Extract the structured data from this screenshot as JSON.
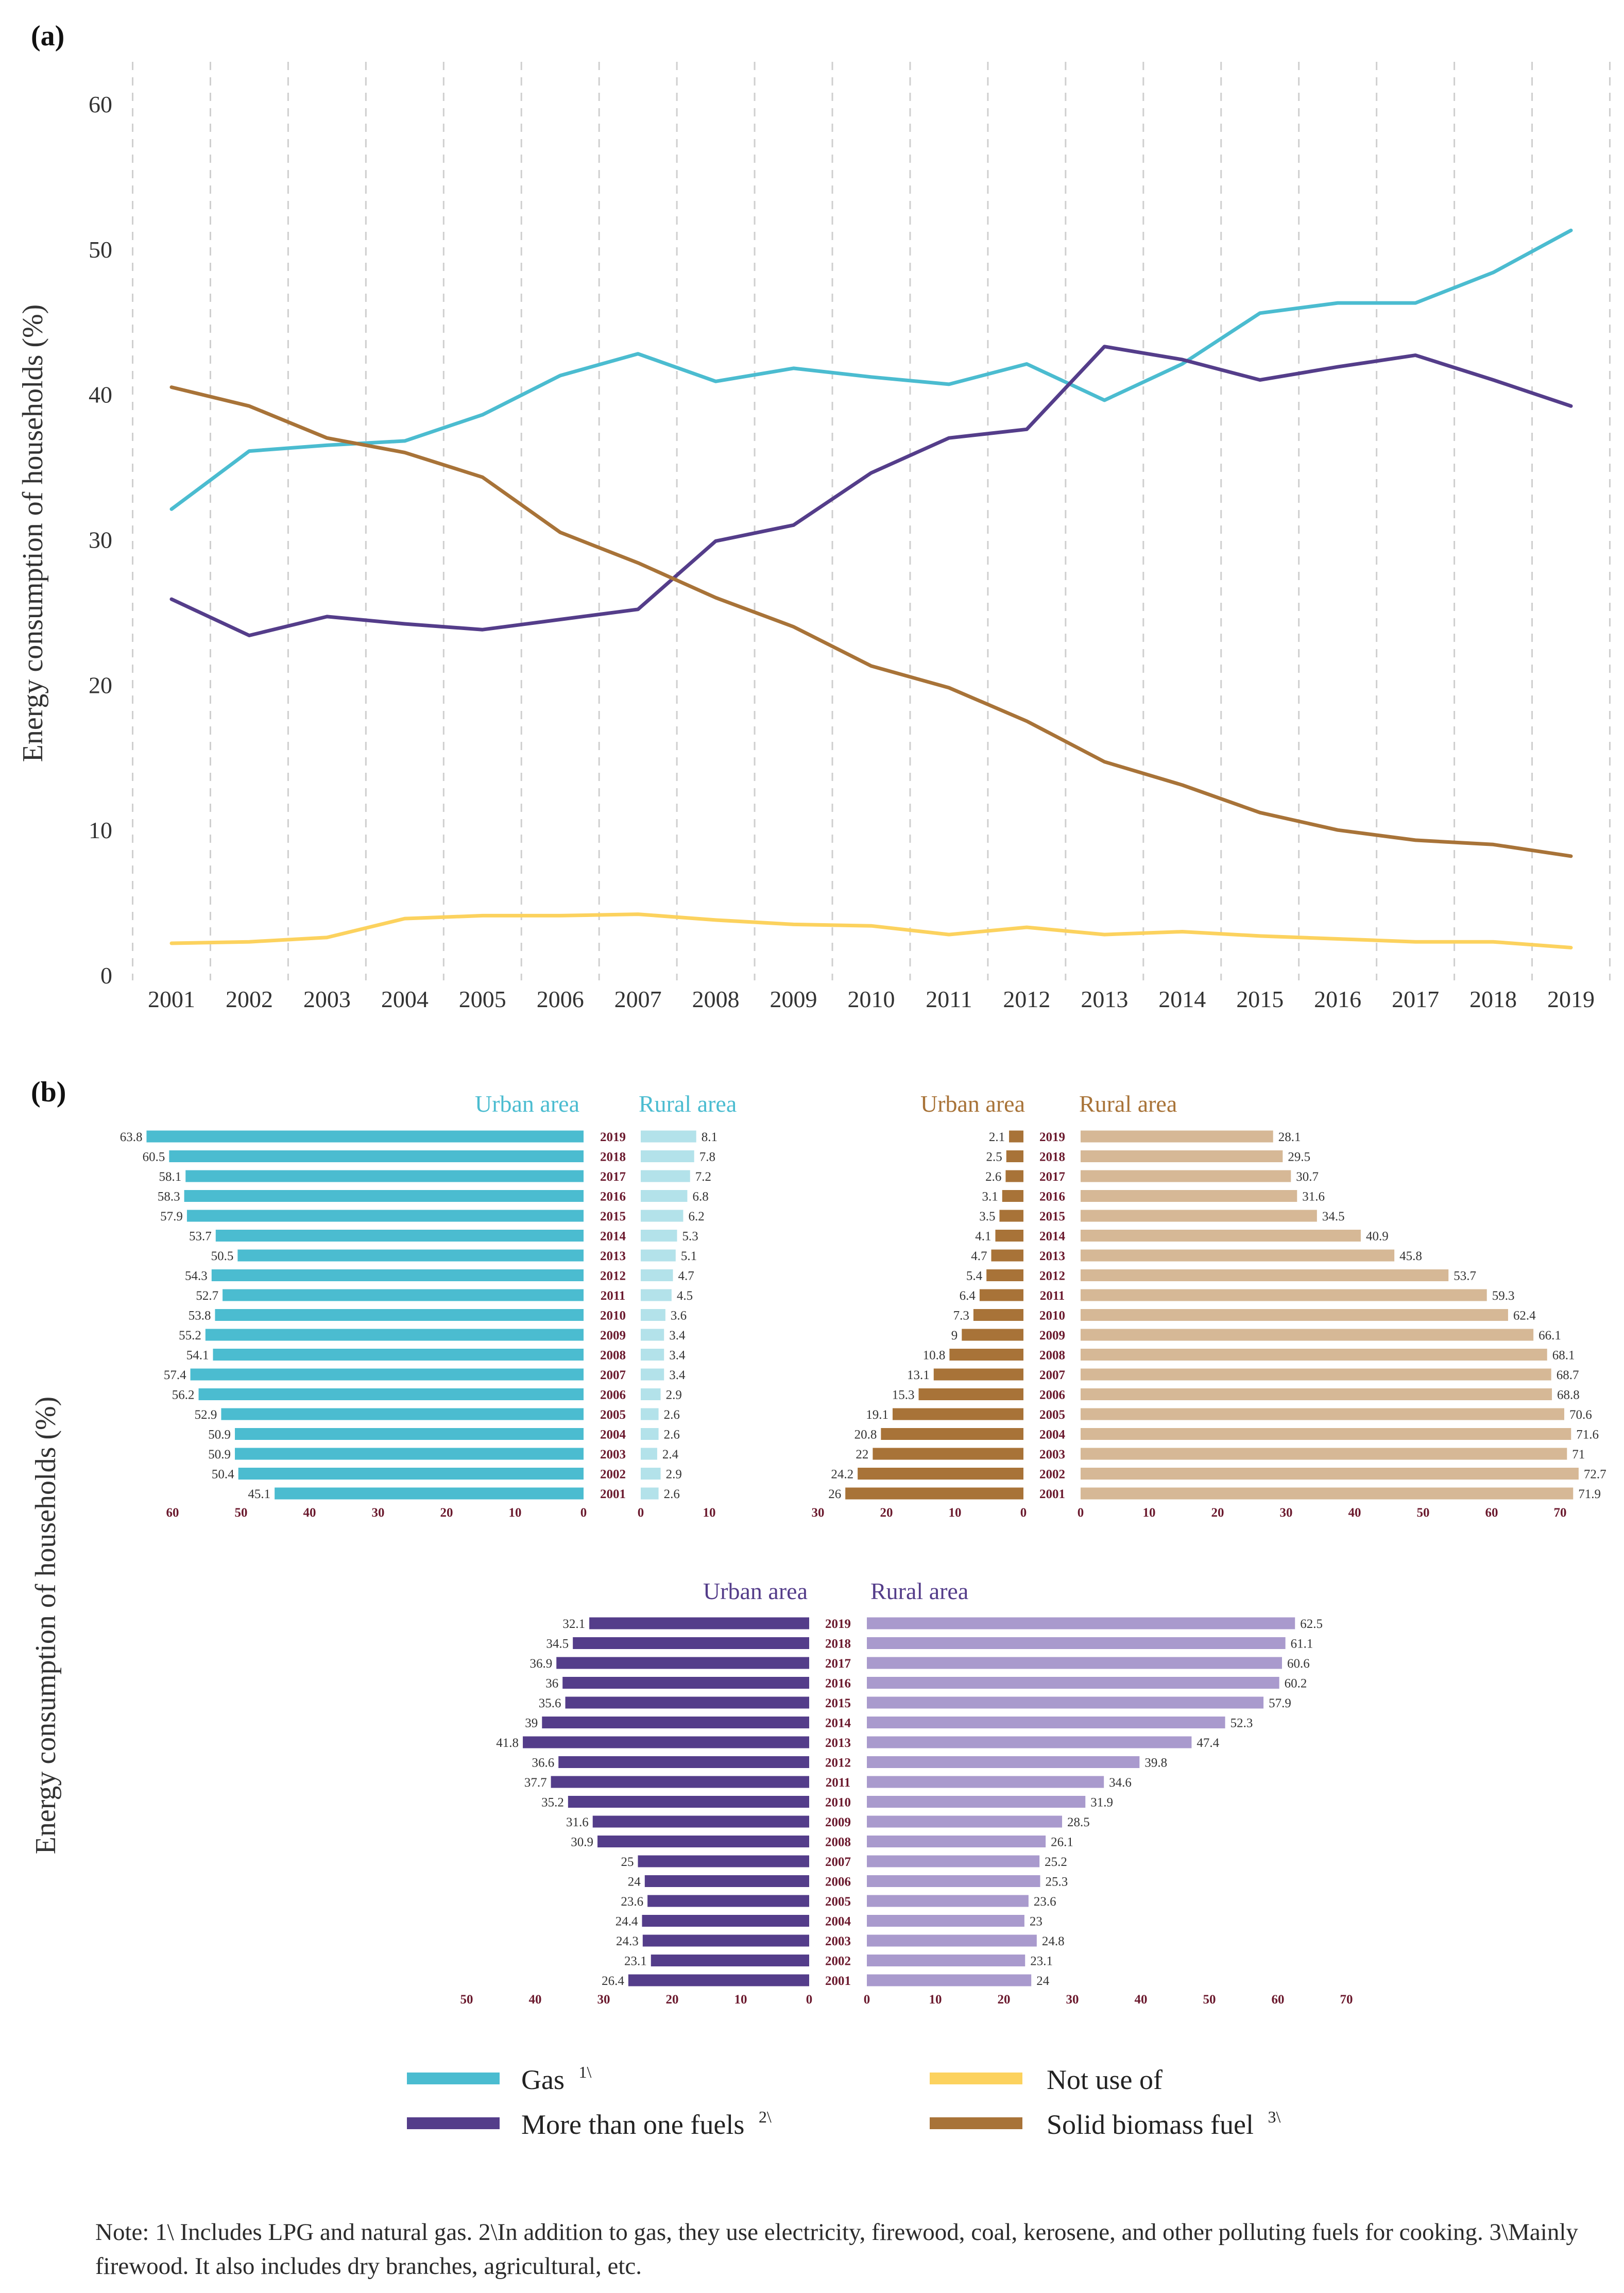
{
  "colors": {
    "gas": "#4bbcd0",
    "gas_light": "#b3e2ea",
    "more_than_one": "#543d8a",
    "more_than_one_light": "#a99acd",
    "not_use": "#fcd25e",
    "biomass": "#a87338",
    "biomass_light": "#d6b896",
    "year_label": "#6b1a2e",
    "grid": "#cfcfcf",
    "axis_text": "#333333"
  },
  "panel_a": {
    "tag": "(a)"
  },
  "panel_b": {
    "tag": "(b)"
  },
  "legend": {
    "gas": {
      "label": "Gas",
      "sup": "1\\"
    },
    "more_than_one": {
      "label": "More than one fuels",
      "sup": "2\\"
    },
    "not_use": {
      "label": "Not use of",
      "sup": ""
    },
    "biomass": {
      "label": "Solid biomass fuel",
      "sup": "3\\"
    }
  },
  "note": "Note: 1\\ Includes LPG and natural gas. 2\\In addition to gas, they use electricity, firewood, coal, kerosene, and other polluting fuels for cooking. 3\\Mainly firewood. It also includes dry branches, agricultural, etc.",
  "chart_data": [
    {
      "id": "line",
      "type": "line",
      "ylabel": "Energy consumption of households (%)",
      "xlabel": "",
      "ylim": [
        0,
        60
      ],
      "yticks": [
        0,
        10,
        20,
        30,
        40,
        50,
        60
      ],
      "x": [
        "2001",
        "2002",
        "2003",
        "2004",
        "2005",
        "2006",
        "2007",
        "2008",
        "2009",
        "2010",
        "2011",
        "2012",
        "2013",
        "2014",
        "2015",
        "2016",
        "2017",
        "2018",
        "2019"
      ],
      "series": [
        {
          "key": "gas",
          "name": "Gas",
          "values": [
            32.1,
            36.1,
            36.5,
            36.8,
            38.6,
            41.3,
            42.8,
            40.9,
            41.8,
            41.2,
            40.7,
            42.1,
            39.6,
            42.1,
            45.6,
            46.3,
            46.3,
            48.4,
            51.3
          ]
        },
        {
          "key": "more_than_one",
          "name": "More than one fuels",
          "values": [
            25.9,
            23.4,
            24.7,
            24.2,
            23.8,
            24.5,
            25.2,
            29.9,
            31.0,
            34.6,
            37.0,
            37.6,
            43.3,
            42.4,
            41.0,
            41.9,
            42.7,
            41.0,
            39.2
          ]
        },
        {
          "key": "not_use",
          "name": "Not use of",
          "values": [
            2.2,
            2.3,
            2.6,
            3.9,
            4.1,
            4.1,
            4.2,
            3.8,
            3.5,
            3.4,
            2.8,
            3.3,
            2.8,
            3.0,
            2.7,
            2.5,
            2.3,
            2.3,
            1.9
          ]
        },
        {
          "key": "biomass",
          "name": "Solid biomass fuel",
          "values": [
            40.5,
            39.2,
            37.0,
            36.0,
            34.3,
            30.5,
            28.4,
            26.0,
            24.0,
            21.3,
            19.8,
            17.5,
            14.7,
            13.1,
            11.2,
            10.0,
            9.3,
            9.0,
            8.2
          ]
        }
      ],
      "grid": "vertical dashed"
    },
    {
      "id": "gas",
      "type": "bar",
      "orientation": "horizontal-pyramid",
      "title_left": "Urban area",
      "title_right": "Rural area",
      "ylabel": "Energy consumption of households (%)",
      "years": [
        "2019",
        "2018",
        "2017",
        "2016",
        "2015",
        "2014",
        "2013",
        "2012",
        "2011",
        "2010",
        "2009",
        "2008",
        "2007",
        "2006",
        "2005",
        "2004",
        "2003",
        "2002",
        "2001"
      ],
      "urban": [
        63.8,
        60.5,
        58.1,
        58.3,
        57.9,
        53.7,
        50.5,
        54.3,
        52.7,
        53.8,
        55.2,
        54.1,
        57.4,
        56.2,
        52.9,
        50.9,
        50.9,
        50.4,
        45.1
      ],
      "rural": [
        8.1,
        7.8,
        7.2,
        6.8,
        6.2,
        5.3,
        5.1,
        4.7,
        4.5,
        3.6,
        3.4,
        3.4,
        3.4,
        2.9,
        2.6,
        2.6,
        2.4,
        2.9,
        2.6
      ],
      "urban_ticks": [
        60,
        50,
        40,
        30,
        20,
        10,
        0
      ],
      "rural_ticks": [
        0,
        10
      ]
    },
    {
      "id": "biomass",
      "type": "bar",
      "orientation": "horizontal-pyramid",
      "title_left": "Urban area",
      "title_right": "Rural area",
      "years": [
        "2019",
        "2018",
        "2017",
        "2016",
        "2015",
        "2014",
        "2013",
        "2012",
        "2011",
        "2010",
        "2009",
        "2008",
        "2007",
        "2006",
        "2005",
        "2004",
        "2003",
        "2002",
        "2001"
      ],
      "urban": [
        2.1,
        2.5,
        2.6,
        3.1,
        3.5,
        4.1,
        4.7,
        5.4,
        6.4,
        7.3,
        9,
        10.8,
        13.1,
        15.3,
        19.1,
        20.8,
        22,
        24.2,
        26
      ],
      "rural": [
        28.1,
        29.5,
        30.7,
        31.6,
        34.5,
        40.9,
        45.8,
        53.7,
        59.3,
        62.4,
        66.1,
        68.1,
        68.7,
        68.8,
        70.6,
        71.6,
        71,
        72.7,
        71.9
      ],
      "urban_ticks": [
        30,
        20,
        10,
        0
      ],
      "rural_ticks": [
        0,
        10,
        20,
        30,
        40,
        50,
        60,
        70
      ]
    },
    {
      "id": "more_than_one",
      "type": "bar",
      "orientation": "horizontal-pyramid",
      "title_left": "Urban area",
      "title_right": "Rural area",
      "years": [
        "2019",
        "2018",
        "2017",
        "2016",
        "2015",
        "2014",
        "2013",
        "2012",
        "2011",
        "2010",
        "2009",
        "2008",
        "2007",
        "2006",
        "2005",
        "2004",
        "2003",
        "2002",
        "2001"
      ],
      "urban": [
        32.1,
        34.5,
        36.9,
        36,
        35.6,
        39,
        41.8,
        36.6,
        37.7,
        35.2,
        31.6,
        30.9,
        25,
        24,
        23.6,
        24.4,
        24.3,
        23.1,
        26.4
      ],
      "rural": [
        62.5,
        61.1,
        60.6,
        60.2,
        57.9,
        52.3,
        47.4,
        39.8,
        34.6,
        31.9,
        28.5,
        26.1,
        25.2,
        25.3,
        23.6,
        23,
        24.8,
        23.1,
        24
      ],
      "urban_ticks": [
        50,
        40,
        30,
        20,
        10,
        0
      ],
      "rural_ticks": [
        0,
        10,
        20,
        30,
        40,
        50,
        60,
        70
      ]
    }
  ]
}
